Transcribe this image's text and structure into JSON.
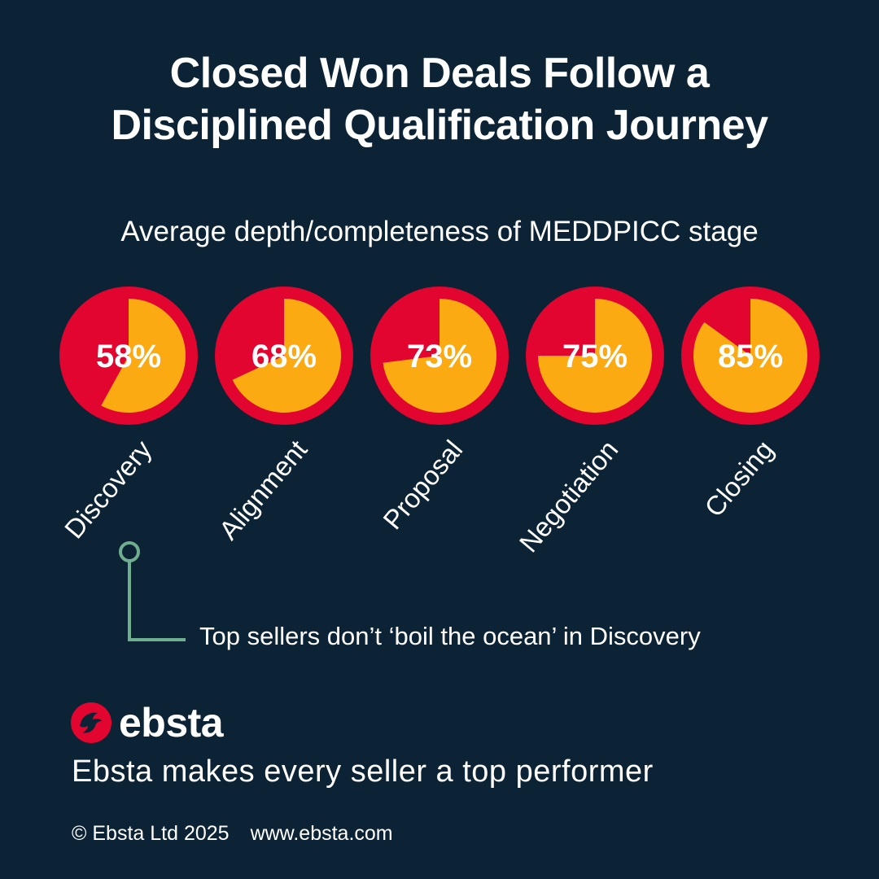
{
  "title_lines": [
    "Closed Won Deals Follow a",
    "Disciplined Qualification Journey"
  ],
  "subtitle": "Average depth/completeness of MEDDPICC stage",
  "chart_data": {
    "type": "pie",
    "categories": [
      "Discovery",
      "Alignment",
      "Proposal",
      "Negotiation",
      "Closing"
    ],
    "values": [
      58,
      68,
      73,
      75,
      85
    ],
    "value_labels": [
      "58%",
      "68%",
      "73%",
      "75%",
      "85%"
    ],
    "unit": "%",
    "colors": {
      "filled": "#fbaa12",
      "remainder": "#e10530"
    }
  },
  "callout": {
    "text": "Top sellers don’t ‘boil the ocean’ in Discovery",
    "target": "Discovery",
    "line_color": "#6fae8e"
  },
  "brand": {
    "name": "ebsta",
    "icon": "ebsta-bird-logo-icon",
    "accent": "#e10530",
    "tagline": "Ebsta makes every seller a top performer"
  },
  "footer": {
    "copyright": "© Ebsta Ltd 2025",
    "url": "www.ebsta.com"
  },
  "colors": {
    "background": "#0c2235",
    "text": "#ffffff"
  }
}
